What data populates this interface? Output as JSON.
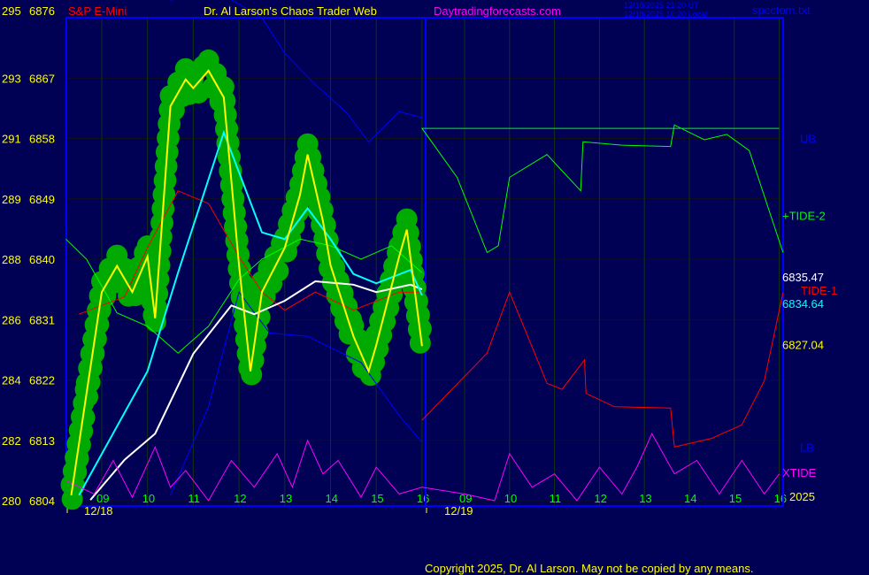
{
  "header": {
    "left_axis_top": "295",
    "instrument": "S&P E-Mini",
    "title": "Dr. Al Larson's Chaos Trader Web",
    "site": "Daytradingforecasts.com",
    "time_ut": "12/18/2025 21:20 UT",
    "time_local": "12/18/2025 16:20 Local",
    "file": "spcctom.txt"
  },
  "footer": {
    "copyright": "Copyright 2025, Dr. Al Larson. May not be copied by any means."
  },
  "colors": {
    "background": "#000055",
    "frame": "#0000ff",
    "grid": "#003300",
    "price": "#ffff00",
    "glow": "#00aa00",
    "cyan": "#00ffff",
    "white": "#ffffff",
    "red": "#ff0000",
    "green": "#00ff00",
    "blue": "#0000ff",
    "magenta": "#ff00ff"
  },
  "chart_data": {
    "type": "line",
    "yticks": [
      {
        "left": "295",
        "right": "6876",
        "v": 6876
      },
      {
        "left": "293",
        "right": "6867",
        "v": 6867
      },
      {
        "left": "291",
        "right": "6858",
        "v": 6858
      },
      {
        "left": "289",
        "right": "6849",
        "v": 6849
      },
      {
        "left": "288",
        "right": "6840",
        "v": 6840
      },
      {
        "left": "286",
        "right": "6831",
        "v": 6831
      },
      {
        "left": "284",
        "right": "6822",
        "v": 6822
      },
      {
        "left": "282",
        "right": "6813",
        "v": 6813
      },
      {
        "left": "280",
        "right": "6804",
        "v": 6804
      }
    ],
    "ylim": [
      6804,
      6876
    ],
    "xticks": [
      {
        "d": "12/18",
        "h": "09"
      },
      {
        "d": "12/18",
        "h": "10"
      },
      {
        "d": "12/18",
        "h": "11"
      },
      {
        "d": "12/18",
        "h": "12"
      },
      {
        "d": "12/18",
        "h": "13"
      },
      {
        "d": "12/18",
        "h": "14"
      },
      {
        "d": "12/18",
        "h": "15"
      },
      {
        "d": "12/18",
        "h": "16"
      },
      {
        "d": "12/19",
        "h": "09"
      },
      {
        "d": "12/19",
        "h": "10"
      },
      {
        "d": "12/19",
        "h": "11"
      },
      {
        "d": "12/19",
        "h": "12"
      },
      {
        "d": "12/19",
        "h": "13"
      },
      {
        "d": "12/19",
        "h": "14"
      },
      {
        "d": "12/19",
        "h": "15"
      },
      {
        "d": "12/19",
        "h": "16"
      }
    ],
    "dates": [
      "12/18",
      "12/19"
    ],
    "year": "2025",
    "right_labels": [
      {
        "text": "UB",
        "color": "#0000ff",
        "v": 6858
      },
      {
        "text": "+TIDE-2",
        "color": "#00ff00",
        "v": 6846.5
      },
      {
        "text": "6835.47",
        "color": "#ffffff",
        "v": 6836.7
      },
      {
        "text": "TIDE-1",
        "color": "#ff0000",
        "v": 6836
      },
      {
        "text": "6834.64",
        "color": "#00ffff",
        "v": 6835
      },
      {
        "text": "6827.04",
        "color": "#ffff00",
        "v": 6827.3
      },
      {
        "text": "LB",
        "color": "#0000ff",
        "v": 6812
      },
      {
        "text": "XTIDE",
        "color": "#ff00ff",
        "v": 6808.2
      }
    ],
    "series": [
      {
        "key": "upper-band",
        "color": "#0000ff",
        "points": [
          [
            "12/18 10:30",
            6878.6
          ],
          [
            "12/18 11:30",
            6880
          ],
          [
            "12/18 12:30",
            6876
          ],
          [
            "12/18 13:00",
            6870.7
          ],
          [
            "12/18 13:40",
            6866
          ],
          [
            "12/18 14:20",
            6862
          ],
          [
            "12/18 14:50",
            6857.5
          ],
          [
            "12/18 15:30",
            6862
          ],
          [
            "12/18 16:00",
            6861.1
          ]
        ]
      },
      {
        "key": "lower-band",
        "color": "#0000ff",
        "points": [
          [
            "12/18 10:30",
            6804.8
          ],
          [
            "12/18 11:20",
            6818
          ],
          [
            "12/18 12:00",
            6835.1
          ],
          [
            "12/18 12:40",
            6829
          ],
          [
            "12/18 13:30",
            6828.5
          ],
          [
            "12/18 14:40",
            6824.6
          ],
          [
            "12/18 15:30",
            6816.7
          ],
          [
            "12/18 16:00",
            6812.7
          ]
        ]
      },
      {
        "key": "tide-2-day1",
        "color": "#00ff00",
        "points": [
          [
            "12/18 08:13",
            6843
          ],
          [
            "12/18 08:40",
            6840
          ],
          [
            "12/18 09:20",
            6832
          ],
          [
            "12/18 10:00",
            6830
          ],
          [
            "12/18 10:40",
            6826
          ],
          [
            "12/18 11:20",
            6830
          ],
          [
            "12/18 12:00",
            6837
          ],
          [
            "12/18 12:30",
            6840
          ],
          [
            "12/18 13:20",
            6843
          ],
          [
            "12/18 14:00",
            6842
          ],
          [
            "12/18 14:40",
            6840
          ],
          [
            "12/18 15:20",
            6842
          ],
          [
            "12/18 16:00",
            6838
          ]
        ]
      },
      {
        "key": "tide-1-day1",
        "color": "#ff0000",
        "points": [
          [
            "12/18 08:30",
            6831.8
          ],
          [
            "12/18 09:30",
            6834.4
          ],
          [
            "12/18 10:00",
            6841.7
          ],
          [
            "12/18 10:40",
            6850.2
          ],
          [
            "12/18 11:20",
            6848.3
          ],
          [
            "12/18 12:00",
            6840.4
          ],
          [
            "12/18 12:30",
            6835.1
          ],
          [
            "12/18 13:00",
            6832.4
          ],
          [
            "12/18 13:40",
            6835.1
          ],
          [
            "12/18 14:30",
            6832.4
          ],
          [
            "12/18 15:30",
            6835.1
          ],
          [
            "12/18 16:00",
            6835.1
          ]
        ]
      },
      {
        "key": "white-average",
        "color": "#ffffff",
        "points": [
          [
            "12/18 08:45",
            6804.1
          ],
          [
            "12/18 09:30",
            6810.1
          ],
          [
            "12/18 10:10",
            6814
          ],
          [
            "12/18 11:00",
            6825.9
          ],
          [
            "12/18 11:50",
            6833.1
          ],
          [
            "12/18 12:20",
            6831.8
          ],
          [
            "12/18 13:00",
            6833.8
          ],
          [
            "12/18 13:40",
            6836.7
          ],
          [
            "12/18 14:30",
            6836.2
          ],
          [
            "12/18 15:00",
            6835.1
          ],
          [
            "12/18 15:45",
            6836.2
          ],
          [
            "12/18 16:00",
            6835.5
          ]
        ]
      },
      {
        "key": "cyan-average",
        "color": "#00ffff",
        "points": [
          [
            "12/18 08:30",
            6804.8
          ],
          [
            "12/18 10:00",
            6823.3
          ],
          [
            "12/18 10:40",
            6838
          ],
          [
            "12/18 11:40",
            6858.9
          ],
          [
            "12/18 12:30",
            6844
          ],
          [
            "12/18 13:00",
            6843
          ],
          [
            "12/18 13:30",
            6847.6
          ],
          [
            "12/18 14:00",
            6843
          ],
          [
            "12/18 14:30",
            6837.8
          ],
          [
            "12/18 15:00",
            6836.4
          ],
          [
            "12/18 15:45",
            6838.4
          ],
          [
            "12/18 16:00",
            6834.6
          ]
        ]
      },
      {
        "key": "xtide",
        "color": "#ff00ff",
        "points": [
          [
            "12/18 08:13",
            6807
          ],
          [
            "12/18 08:50",
            6805
          ],
          [
            "12/18 09:15",
            6810
          ],
          [
            "12/18 09:40",
            6804.5
          ],
          [
            "12/18 10:10",
            6812
          ],
          [
            "12/18 10:30",
            6806
          ],
          [
            "12/18 10:50",
            6808.5
          ],
          [
            "12/18 11:20",
            6804
          ],
          [
            "12/18 11:50",
            6810
          ],
          [
            "12/18 12:20",
            6806
          ],
          [
            "12/18 12:50",
            6811
          ],
          [
            "12/18 13:10",
            6806
          ],
          [
            "12/18 13:30",
            6813
          ],
          [
            "12/18 13:50",
            6808
          ],
          [
            "12/18 14:10",
            6810
          ],
          [
            "12/18 14:40",
            6804.5
          ],
          [
            "12/18 15:00",
            6809
          ],
          [
            "12/18 15:30",
            6805
          ],
          [
            "12/18 16:00",
            6806
          ],
          [
            "12/19 09:00",
            6805
          ],
          [
            "12/19 09:40",
            6804
          ],
          [
            "12/19 10:00",
            6811
          ],
          [
            "12/19 10:30",
            6806
          ],
          [
            "12/19 11:00",
            6808
          ],
          [
            "12/19 11:30",
            6804
          ],
          [
            "12/19 12:00",
            6809
          ],
          [
            "12/19 12:30",
            6805
          ],
          [
            "12/19 12:50",
            6809
          ],
          [
            "12/19 13:10",
            6814
          ],
          [
            "12/19 13:40",
            6808
          ],
          [
            "12/19 14:10",
            6810
          ],
          [
            "12/19 14:40",
            6805
          ],
          [
            "12/19 15:10",
            6810
          ],
          [
            "12/19 15:40",
            6805
          ],
          [
            "12/19 16:00",
            6808
          ]
        ]
      },
      {
        "key": "tide-2-day2",
        "color": "#00ff00",
        "points": [
          [
            "12/19 16:00",
            6859.5
          ],
          [
            "12/18 16:00",
            6859.5
          ],
          [
            "12/19 08:50",
            6852.2
          ],
          [
            "12/19 09:30",
            6841
          ],
          [
            "12/19 09:45",
            6842
          ],
          [
            "12/19 10:00",
            6852.2
          ],
          [
            "12/19 10:50",
            6855.6
          ],
          [
            "12/19 11:35",
            6850.2
          ],
          [
            "12/19 11:38",
            6857.5
          ],
          [
            "12/19 12:30",
            6857
          ],
          [
            "12/19 13:35",
            6856.8
          ],
          [
            "12/19 13:40",
            6860
          ],
          [
            "12/19 14:20",
            6857.8
          ],
          [
            "12/19 14:50",
            6858.6
          ],
          [
            "12/19 15:20",
            6856.2
          ],
          [
            "12/19 16:05",
            6841
          ]
        ]
      },
      {
        "key": "tide-1-day2",
        "color": "#ff0000",
        "points": [
          [
            "12/18 16:00",
            6816
          ],
          [
            "12/19 09:30",
            6826
          ],
          [
            "12/19 10:00",
            6835.1
          ],
          [
            "12/19 10:50",
            6821.5
          ],
          [
            "12/19 11:10",
            6820.6
          ],
          [
            "12/19 11:40",
            6825
          ],
          [
            "12/19 11:42",
            6820
          ],
          [
            "12/19 12:20",
            6818
          ],
          [
            "12/19 13:35",
            6817.8
          ],
          [
            "12/19 13:40",
            6812
          ],
          [
            "12/19 14:30",
            6813.3
          ],
          [
            "12/19 15:10",
            6815.3
          ],
          [
            "12/19 15:40",
            6821.9
          ],
          [
            "12/19 16:05",
            6835
          ]
        ]
      },
      {
        "key": "price",
        "color": "#ffff00",
        "points": [
          [
            "12/18 08:20",
            6804.8
          ],
          [
            "12/18 08:40",
            6820
          ],
          [
            "12/18 09:00",
            6835.1
          ],
          [
            "12/18 09:20",
            6839
          ],
          [
            "12/18 09:40",
            6835.1
          ],
          [
            "12/18 10:00",
            6840.4
          ],
          [
            "12/18 10:10",
            6831.2
          ],
          [
            "12/18 10:30",
            6862.8
          ],
          [
            "12/18 10:50",
            6866.8
          ],
          [
            "12/18 11:00",
            6865.5
          ],
          [
            "12/18 11:20",
            6868.1
          ],
          [
            "12/18 11:40",
            6864.1
          ],
          [
            "12/18 12:00",
            6839.1
          ],
          [
            "12/18 12:15",
            6823.3
          ],
          [
            "12/18 12:30",
            6835.1
          ],
          [
            "12/18 13:00",
            6841.7
          ],
          [
            "12/18 13:20",
            6849.6
          ],
          [
            "12/18 13:30",
            6855.6
          ],
          [
            "12/18 13:50",
            6845.7
          ],
          [
            "12/18 14:00",
            6839.1
          ],
          [
            "12/18 14:30",
            6828.5
          ],
          [
            "12/18 14:50",
            6823.3
          ],
          [
            "12/18 15:00",
            6827.2
          ],
          [
            "12/18 15:30",
            6840.4
          ],
          [
            "12/18 15:40",
            6844.4
          ],
          [
            "12/18 16:00",
            6827.04
          ]
        ]
      }
    ]
  }
}
